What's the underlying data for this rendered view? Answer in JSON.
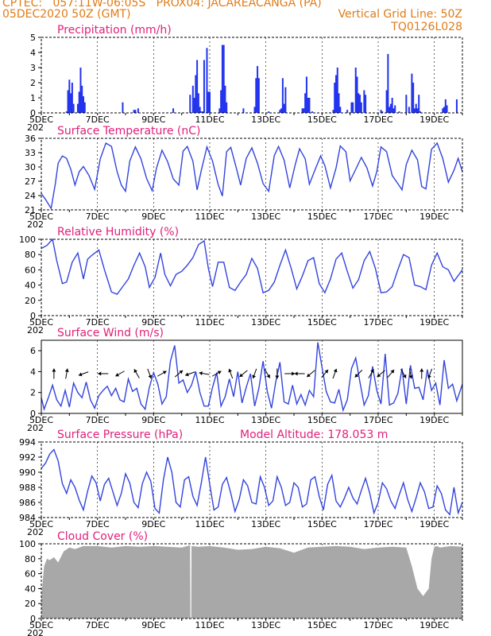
{
  "header": {
    "line1": "CPTEC:   057:11W-06:05S   PROX04: JACAREACANGA (PA)",
    "line2_left": "05DEC2020 50Z (GMT)",
    "line2_right": "Vertical Grid Line: 50Z",
    "line3_right": "TQ0126L028"
  },
  "x_axis": {
    "range_days": [
      0,
      15
    ],
    "tick_labels": [
      "5DEC",
      "7DEC",
      "9DEC",
      "11DEC",
      "13DEC",
      "15DEC",
      "17DEC",
      "19DEC"
    ],
    "tick_days": [
      0,
      2,
      4,
      6,
      8,
      10,
      12,
      14
    ],
    "year_label": "202"
  },
  "colors": {
    "line": "#3344dd",
    "bars": "#2233ee",
    "cloud": "#a8a8a8",
    "title": "#e0207a",
    "header": "#e07b16",
    "arrow": "#000000"
  },
  "chart_data": [
    {
      "type": "bar",
      "title": "Precipitation (mm/h)",
      "ylim": [
        0,
        5
      ],
      "yticks": [
        0,
        1,
        2,
        3,
        4,
        5
      ],
      "bar_width_days": 0.04,
      "x": [
        0.9,
        0.95,
        1.0,
        1.05,
        1.1,
        1.15,
        1.3,
        1.35,
        1.4,
        1.45,
        1.5,
        1.55,
        2.9,
        3.3,
        3.35,
        3.45,
        4.7,
        5.3,
        5.4,
        5.45,
        5.5,
        5.55,
        5.6,
        5.65,
        5.7,
        5.75,
        5.8,
        5.9,
        5.95,
        6.0,
        6.35,
        6.4,
        6.45,
        6.5,
        6.55,
        6.6,
        7.2,
        7.6,
        7.65,
        7.7,
        7.75,
        8.1,
        8.5,
        8.55,
        8.6,
        8.65,
        8.7,
        9.3,
        9.35,
        9.4,
        9.45,
        9.5,
        9.55,
        9.65,
        10.4,
        10.45,
        10.5,
        10.55,
        10.6,
        10.65,
        10.9,
        11.05,
        11.1,
        11.2,
        11.25,
        11.3,
        11.35,
        11.4,
        11.5,
        11.55,
        12.1,
        12.15,
        12.3,
        12.35,
        12.4,
        12.45,
        12.5,
        12.55,
        12.6,
        12.75,
        13.0,
        13.1,
        13.2,
        13.25,
        13.3,
        13.35,
        13.4,
        13.45,
        13.5,
        14.3,
        14.35,
        14.4,
        14.45,
        14.8
      ],
      "values": [
        0.1,
        1.5,
        2.2,
        1.3,
        2.0,
        0.6,
        0.6,
        1.4,
        3.0,
        1.8,
        1.1,
        0.7,
        0.7,
        0.2,
        0.2,
        0.3,
        0.3,
        1.2,
        1.8,
        1.0,
        2.5,
        3.5,
        1.3,
        0.4,
        0.1,
        0.1,
        3.5,
        4.3,
        1.4,
        1.4,
        0.3,
        1.5,
        4.5,
        4.5,
        1.8,
        0.7,
        0.3,
        0.4,
        2.3,
        3.1,
        2.3,
        0.1,
        0.2,
        0.3,
        2.3,
        0.6,
        1.7,
        0.3,
        0.3,
        1.3,
        2.4,
        1.0,
        1.0,
        0.1,
        0.2,
        2.0,
        2.5,
        3.0,
        1.3,
        0.4,
        0.2,
        0.7,
        0.7,
        3.0,
        2.4,
        1.3,
        1.2,
        0.7,
        1.5,
        1.2,
        0.2,
        0.1,
        1.5,
        3.9,
        0.4,
        0.6,
        1.0,
        0.3,
        0.5,
        0.1,
        1.2,
        0.4,
        2.6,
        2.0,
        0.3,
        0.6,
        0.3,
        1.2,
        0.1,
        0.3,
        0.4,
        0.9,
        0.5,
        0.9
      ]
    },
    {
      "type": "line",
      "title": "Surface Temperature (nC)",
      "ylim": [
        21,
        36
      ],
      "yticks": [
        21,
        24,
        27,
        30,
        33,
        36
      ],
      "x": [
        0,
        0.15,
        0.35,
        0.5,
        0.6,
        0.75,
        0.9,
        1.05,
        1.2,
        1.35,
        1.5,
        1.7,
        1.9,
        2.1,
        2.3,
        2.5,
        2.7,
        2.85,
        3.0,
        3.15,
        3.35,
        3.55,
        3.75,
        3.95,
        4.1,
        4.3,
        4.5,
        4.7,
        4.9,
        5.05,
        5.2,
        5.4,
        5.55,
        5.7,
        5.9,
        6.1,
        6.3,
        6.45,
        6.6,
        6.75,
        6.95,
        7.1,
        7.3,
        7.5,
        7.7,
        7.9,
        8.1,
        8.3,
        8.45,
        8.65,
        8.85,
        9.05,
        9.2,
        9.4,
        9.55,
        9.75,
        9.95,
        10.1,
        10.3,
        10.5,
        10.65,
        10.85,
        11.0,
        11.2,
        11.4,
        11.6,
        11.8,
        11.95,
        12.1,
        12.3,
        12.5,
        12.7,
        12.85,
        13.0,
        13.2,
        13.4,
        13.55,
        13.7,
        13.9,
        14.1,
        14.3,
        14.5,
        14.7,
        14.85,
        15.0
      ],
      "values": [
        24.4,
        23.2,
        21.3,
        26.5,
        30.8,
        32.3,
        31.8,
        29.5,
        26.2,
        29.0,
        30.1,
        28.2,
        25.3,
        31.7,
        35.0,
        34.3,
        29.0,
        26.2,
        24.9,
        31.2,
        34.2,
        31.7,
        27.6,
        25.0,
        29.7,
        33.5,
        31.1,
        27.5,
        26.2,
        33.3,
        34.3,
        31.2,
        25.2,
        29.3,
        34.2,
        31.2,
        26.3,
        23.9,
        33.2,
        34.1,
        29.7,
        26.2,
        31.8,
        34.0,
        30.8,
        26.5,
        24.9,
        32.4,
        34.3,
        31.4,
        25.6,
        30.6,
        33.8,
        31.7,
        26.4,
        29.4,
        32.3,
        30.3,
        25.6,
        29.8,
        34.4,
        33.2,
        27.1,
        29.5,
        32.0,
        29.8,
        26.0,
        29.0,
        34.2,
        33.2,
        28.2,
        26.5,
        25.2,
        30.5,
        33.5,
        31.5,
        25.9,
        25.4,
        33.7,
        35.0,
        31.8,
        26.8,
        29.3,
        31.8,
        29.0
      ]
    },
    {
      "type": "line",
      "title": "Relative Humidity (%)",
      "ylim": [
        0,
        100
      ],
      "yticks": [
        0,
        20,
        40,
        60,
        80,
        100
      ],
      "x": [
        0,
        0.2,
        0.4,
        0.55,
        0.75,
        0.9,
        1.1,
        1.3,
        1.5,
        1.65,
        1.8,
        2.05,
        2.25,
        2.5,
        2.7,
        2.9,
        3.1,
        3.3,
        3.5,
        3.7,
        3.85,
        4.05,
        4.25,
        4.4,
        4.6,
        4.8,
        5.0,
        5.2,
        5.4,
        5.6,
        5.8,
        5.95,
        6.1,
        6.3,
        6.5,
        6.7,
        6.9,
        7.1,
        7.3,
        7.5,
        7.7,
        7.9,
        8.1,
        8.3,
        8.5,
        8.7,
        8.9,
        9.1,
        9.3,
        9.5,
        9.7,
        9.9,
        10.1,
        10.3,
        10.5,
        10.7,
        10.9,
        11.1,
        11.3,
        11.5,
        11.7,
        11.9,
        12.1,
        12.3,
        12.5,
        12.7,
        12.9,
        13.1,
        13.3,
        13.5,
        13.7,
        13.9,
        14.1,
        14.3,
        14.5,
        14.7,
        15.0
      ],
      "values": [
        88,
        92,
        100,
        72,
        42,
        44,
        70,
        82,
        48,
        74,
        79,
        86,
        60,
        31,
        28,
        38,
        48,
        66,
        82,
        64,
        37,
        50,
        82,
        54,
        39,
        54,
        58,
        66,
        76,
        93,
        98,
        62,
        38,
        70,
        70,
        37,
        33,
        44,
        54,
        75,
        62,
        30,
        33,
        44,
        66,
        86,
        62,
        35,
        52,
        72,
        76,
        42,
        30,
        48,
        74,
        82,
        58,
        36,
        47,
        72,
        84,
        62,
        30,
        31,
        38,
        60,
        80,
        76,
        40,
        38,
        34,
        66,
        82,
        64,
        60,
        45,
        60
      ]
    },
    {
      "type": "line",
      "title": "Surface Wind (m/s)",
      "ylim": [
        0,
        7
      ],
      "yticks": [
        0,
        2,
        4,
        6
      ],
      "x": [
        0,
        0.1,
        0.25,
        0.4,
        0.55,
        0.7,
        0.85,
        1.0,
        1.15,
        1.3,
        1.45,
        1.6,
        1.75,
        1.9,
        2.05,
        2.2,
        2.35,
        2.5,
        2.65,
        2.8,
        2.95,
        3.1,
        3.25,
        3.4,
        3.55,
        3.7,
        3.85,
        4.0,
        4.15,
        4.3,
        4.45,
        4.6,
        4.75,
        4.9,
        5.05,
        5.2,
        5.35,
        5.5,
        5.65,
        5.8,
        5.95,
        6.1,
        6.25,
        6.4,
        6.55,
        6.7,
        6.85,
        7.0,
        7.15,
        7.3,
        7.45,
        7.6,
        7.75,
        7.9,
        8.05,
        8.2,
        8.35,
        8.5,
        8.65,
        8.8,
        8.95,
        9.1,
        9.25,
        9.4,
        9.55,
        9.7,
        9.85,
        10.0,
        10.15,
        10.3,
        10.45,
        10.6,
        10.75,
        10.9,
        11.05,
        11.2,
        11.35,
        11.5,
        11.65,
        11.8,
        11.95,
        12.1,
        12.25,
        12.4,
        12.55,
        12.7,
        12.85,
        13.0,
        13.15,
        13.3,
        13.45,
        13.6,
        13.75,
        13.9,
        14.05,
        14.2,
        14.35,
        14.5,
        14.65,
        14.8,
        15.0
      ],
      "values": [
        1.5,
        0.4,
        1.5,
        2.7,
        1.3,
        0.7,
        2.2,
        0.6,
        2.9,
        2.0,
        1.5,
        3.0,
        1.3,
        0.5,
        1.7,
        2.2,
        2.6,
        1.7,
        2.4,
        1.3,
        1.1,
        3.3,
        2.1,
        2.4,
        0.9,
        0.4,
        2.5,
        3.9,
        2.8,
        0.9,
        1.6,
        5.0,
        6.5,
        2.9,
        3.2,
        2.0,
        2.7,
        4.0,
        2.0,
        0.7,
        0.7,
        2.5,
        3.9,
        0.7,
        1.6,
        3.3,
        1.6,
        4.0,
        1.0,
        2.5,
        3.8,
        0.7,
        2.4,
        5.0,
        2.1,
        0.5,
        3.0,
        4.9,
        1.1,
        0.9,
        2.7,
        0.9,
        1.8,
        0.8,
        2.2,
        1.6,
        6.8,
        4.4,
        2.1,
        1.1,
        1.0,
        2.3,
        0.3,
        1.3,
        4.3,
        5.3,
        3.0,
        0.8,
        1.7,
        4.5,
        2.2,
        0.9,
        5.7,
        0.8,
        1.0,
        1.9,
        4.3,
        0.9,
        4.6,
        2.4,
        2.5,
        1.3,
        4.2,
        2.2,
        2.9,
        0.8,
        5.1,
        2.4,
        2.8,
        1.2,
        2.8
      ]
    },
    {
      "type": "line",
      "title": "Surface Pressure (hPa)",
      "annotation": "Model Altitude: 178.053 m",
      "ylim": [
        984,
        994
      ],
      "yticks": [
        984,
        986,
        988,
        990,
        992,
        994
      ],
      "x": [
        0,
        0.15,
        0.3,
        0.45,
        0.6,
        0.75,
        0.9,
        1.05,
        1.2,
        1.35,
        1.5,
        1.65,
        1.8,
        1.95,
        2.1,
        2.25,
        2.4,
        2.55,
        2.7,
        2.85,
        3.0,
        3.15,
        3.3,
        3.45,
        3.6,
        3.75,
        3.9,
        4.05,
        4.2,
        4.35,
        4.5,
        4.65,
        4.8,
        4.95,
        5.1,
        5.25,
        5.4,
        5.55,
        5.7,
        5.85,
        6.0,
        6.15,
        6.3,
        6.45,
        6.6,
        6.75,
        6.9,
        7.05,
        7.2,
        7.35,
        7.5,
        7.65,
        7.8,
        7.95,
        8.1,
        8.25,
        8.4,
        8.55,
        8.7,
        8.85,
        9.0,
        9.15,
        9.3,
        9.45,
        9.6,
        9.75,
        9.9,
        10.05,
        10.2,
        10.35,
        10.5,
        10.65,
        10.8,
        10.95,
        11.1,
        11.25,
        11.4,
        11.55,
        11.7,
        11.85,
        12.0,
        12.15,
        12.3,
        12.45,
        12.6,
        12.75,
        12.9,
        13.05,
        13.2,
        13.35,
        13.5,
        13.65,
        13.8,
        13.95,
        14.1,
        14.25,
        14.4,
        14.55,
        14.7,
        14.85,
        15.0
      ],
      "values": [
        990.5,
        991.2,
        992.4,
        993.0,
        991.5,
        988.5,
        987.2,
        989.0,
        988.0,
        986.3,
        985.0,
        987.5,
        989.5,
        988.6,
        986.2,
        988.4,
        989.2,
        987.4,
        985.6,
        987.2,
        989.8,
        988.6,
        986.0,
        985.3,
        988.5,
        990.0,
        988.8,
        985.2,
        984.6,
        989.0,
        992.0,
        990.0,
        986.0,
        985.4,
        989.0,
        989.4,
        986.8,
        985.6,
        988.6,
        992.0,
        988.4,
        985.0,
        985.4,
        988.4,
        989.3,
        987.2,
        984.8,
        986.4,
        989.0,
        988.2,
        986.0,
        985.8,
        989.4,
        988.0,
        985.6,
        986.2,
        989.4,
        988.0,
        985.6,
        986.0,
        988.6,
        988.0,
        985.4,
        985.8,
        989.0,
        989.4,
        986.8,
        985.0,
        988.4,
        989.6,
        986.2,
        985.4,
        986.6,
        988.0,
        986.6,
        985.8,
        987.6,
        989.2,
        987.2,
        984.6,
        986.0,
        988.6,
        987.8,
        986.2,
        985.2,
        987.0,
        988.6,
        986.4,
        984.8,
        986.6,
        988.6,
        987.4,
        985.2,
        985.4,
        988.2,
        987.2,
        985.0,
        984.4,
        988.0,
        984.6,
        986.0
      ]
    },
    {
      "type": "area",
      "title": "Cloud Cover (%)",
      "ylim": [
        0,
        100
      ],
      "yticks": [
        0,
        20,
        40,
        60,
        80,
        100
      ],
      "x": [
        0,
        0.1,
        0.2,
        0.3,
        0.45,
        0.6,
        0.8,
        1.0,
        1.2,
        1.5,
        2.0,
        2.5,
        3.0,
        3.5,
        4.0,
        4.5,
        5.0,
        5.3,
        5.31,
        5.34,
        5.35,
        5.6,
        6.0,
        6.5,
        7.0,
        7.5,
        8.0,
        8.5,
        9.0,
        9.5,
        10.0,
        10.5,
        11.0,
        11.5,
        12.0,
        12.5,
        13.0,
        13.2,
        13.4,
        13.6,
        13.8,
        13.9,
        14.0,
        14.1,
        14.2,
        14.4,
        14.6,
        15.0
      ],
      "values": [
        30,
        70,
        80,
        78,
        82,
        75,
        90,
        95,
        93,
        97,
        97,
        95,
        97,
        96,
        97,
        96,
        95,
        98,
        0,
        0,
        97,
        96,
        97,
        95,
        92,
        93,
        96,
        94,
        88,
        95,
        96,
        97,
        96,
        93,
        95,
        96,
        95,
        70,
        40,
        30,
        40,
        80,
        96,
        97,
        95,
        96,
        97,
        96
      ]
    }
  ],
  "wind_arrows": [
    {
      "day": 0.45,
      "dir_deg": 0
    },
    {
      "day": 0.9,
      "dir_deg": 10
    },
    {
      "day": 1.5,
      "dir_deg": 250
    },
    {
      "day": 2.2,
      "dir_deg": 270
    },
    {
      "day": 2.8,
      "dir_deg": 240
    },
    {
      "day": 3.4,
      "dir_deg": 330
    },
    {
      "day": 3.85,
      "dir_deg": 160
    },
    {
      "day": 4.3,
      "dir_deg": 60
    },
    {
      "day": 4.9,
      "dir_deg": 50
    },
    {
      "day": 5.3,
      "dir_deg": 250
    },
    {
      "day": 5.8,
      "dir_deg": 280
    },
    {
      "day": 6.25,
      "dir_deg": 60
    },
    {
      "day": 6.75,
      "dir_deg": 340
    },
    {
      "day": 7.2,
      "dir_deg": 230
    },
    {
      "day": 7.6,
      "dir_deg": 200
    },
    {
      "day": 8.05,
      "dir_deg": 150
    },
    {
      "day": 8.4,
      "dir_deg": 180
    },
    {
      "day": 8.85,
      "dir_deg": 90
    },
    {
      "day": 9.2,
      "dir_deg": 270
    },
    {
      "day": 9.6,
      "dir_deg": 230
    },
    {
      "day": 10.1,
      "dir_deg": 40
    },
    {
      "day": 10.45,
      "dir_deg": 20
    },
    {
      "day": 11.3,
      "dir_deg": 225
    },
    {
      "day": 11.75,
      "dir_deg": 30
    },
    {
      "day": 12.1,
      "dir_deg": 230
    },
    {
      "day": 12.45,
      "dir_deg": 40
    },
    {
      "day": 12.9,
      "dir_deg": 150
    },
    {
      "day": 13.15,
      "dir_deg": 170
    },
    {
      "day": 13.55,
      "dir_deg": 0
    },
    {
      "day": 13.85,
      "dir_deg": 200
    }
  ]
}
